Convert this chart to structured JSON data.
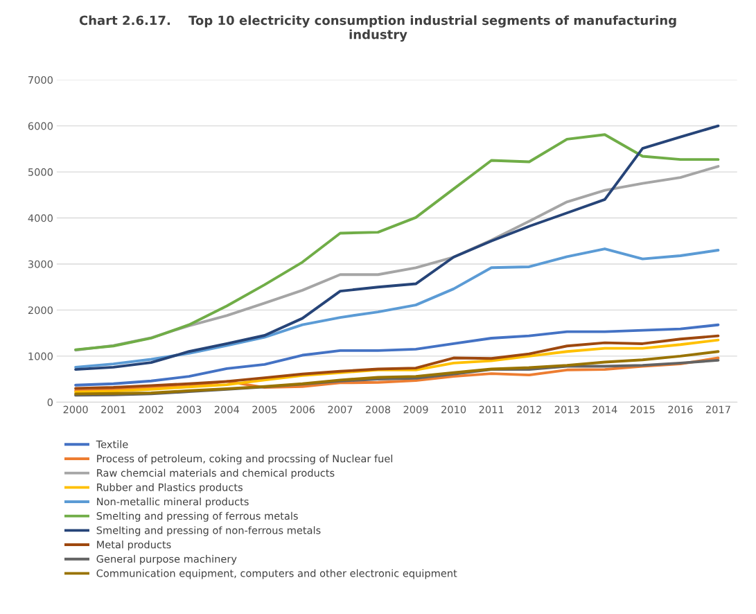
{
  "chart_data": {
    "type": "line",
    "title": "Chart 2.6.17.    Top 10 electricity consumption industrial segments of manufacturing\nindustry",
    "categories": [
      "2000",
      "2001",
      "2002",
      "2003",
      "2004",
      "2005",
      "2006",
      "2007",
      "2008",
      "2009",
      "2010",
      "2011",
      "2012",
      "2013",
      "2014",
      "2015",
      "2016",
      "2017"
    ],
    "ylim": [
      0,
      7000
    ],
    "yticks": [
      0,
      1000,
      2000,
      3000,
      4000,
      5000,
      6000,
      7000
    ],
    "grid": "y",
    "legend": "bottom",
    "marker": "none",
    "line_style": "solid",
    "series": [
      {
        "name": "Textile",
        "color": "#4472c4",
        "values": [
          370,
          400,
          460,
          560,
          730,
          820,
          1020,
          1120,
          1120,
          1150,
          1270,
          1390,
          1440,
          1530,
          1530,
          1560,
          1590,
          1680
        ]
      },
      {
        "name": "Process of petroleum, coking and procssing of Nuclear fuel",
        "color": "#ed7d31",
        "values": [
          250,
          270,
          320,
          350,
          450,
          320,
          340,
          420,
          430,
          470,
          560,
          620,
          590,
          700,
          710,
          780,
          830,
          960
        ]
      },
      {
        "name": "Raw chemcial materials and chemical products",
        "color": "#a5a5a5",
        "values": [
          1130,
          1230,
          1400,
          1660,
          1880,
          2150,
          2430,
          2770,
          2770,
          2920,
          3150,
          3520,
          3930,
          4350,
          4600,
          4750,
          4880,
          5120
        ]
      },
      {
        "name": "Rubber and Plastics products",
        "color": "#ffc000",
        "values": [
          220,
          240,
          280,
          330,
          380,
          480,
          580,
          640,
          700,
          700,
          850,
          900,
          1000,
          1100,
          1170,
          1170,
          1250,
          1350
        ]
      },
      {
        "name": "Non-metallic mineral products",
        "color": "#5b9bd5",
        "values": [
          760,
          830,
          930,
          1060,
          1230,
          1410,
          1680,
          1840,
          1960,
          2110,
          2460,
          2920,
          2940,
          3160,
          3330,
          3110,
          3180,
          3300
        ]
      },
      {
        "name": "Smelting and pressing of ferrous metals",
        "color": "#70ad47",
        "values": [
          1140,
          1220,
          1390,
          1680,
          2090,
          2550,
          3040,
          3670,
          3690,
          4010,
          4630,
          5250,
          5220,
          5710,
          5810,
          5340,
          5270,
          5270
        ]
      },
      {
        "name": "Smelting and pressing of non-ferrous metals",
        "color": "#264478",
        "values": [
          710,
          760,
          860,
          1100,
          1270,
          1450,
          1820,
          2410,
          2500,
          2570,
          3150,
          3500,
          3820,
          4110,
          4400,
          5510,
          5760,
          6000
        ]
      },
      {
        "name": "Metal products",
        "color": "#9e480e",
        "values": [
          300,
          320,
          360,
          400,
          450,
          530,
          610,
          670,
          720,
          740,
          960,
          950,
          1050,
          1220,
          1290,
          1270,
          1370,
          1440
        ]
      },
      {
        "name": "General purpose machinery",
        "color": "#636363",
        "values": [
          150,
          160,
          180,
          230,
          280,
          330,
          390,
          460,
          500,
          520,
          610,
          710,
          710,
          780,
          780,
          800,
          850,
          910
        ]
      },
      {
        "name": "Communication equipment, computers and other electronic equipment",
        "color": "#997300",
        "values": [
          180,
          190,
          200,
          250,
          290,
          340,
          400,
          480,
          540,
          560,
          640,
          720,
          750,
          800,
          870,
          920,
          1000,
          1100
        ]
      }
    ]
  }
}
